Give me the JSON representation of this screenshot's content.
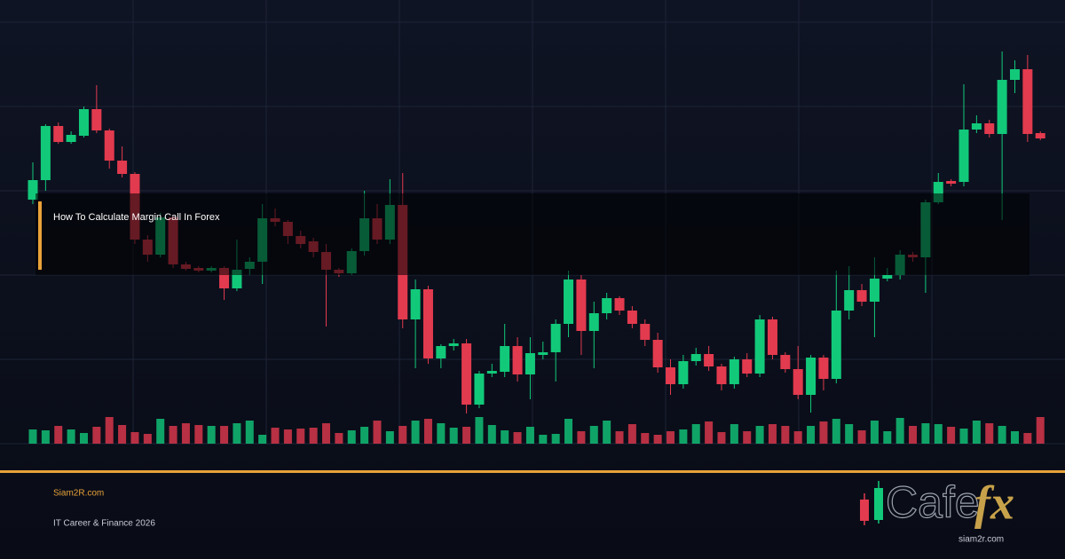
{
  "chart_data": {
    "type": "candlestick",
    "title": "How To Calculate Margin Call In Forex",
    "up_color": "#12c97a",
    "down_color": "#e23a4e",
    "ylim": [
      0,
      480
    ],
    "open": [
      275,
      297,
      358,
      340,
      347,
      377,
      353,
      319,
      304,
      230,
      213,
      255,
      202,
      198,
      195,
      198,
      175,
      197,
      205,
      254,
      250,
      234,
      228,
      216,
      196,
      192,
      217,
      254,
      230,
      269,
      140,
      174,
      96,
      110,
      113,
      44,
      79,
      81,
      110,
      78,
      100,
      103,
      135,
      185,
      127,
      147,
      164,
      150,
      135,
      117,
      86,
      67,
      93,
      101,
      87,
      67,
      95,
      79,
      140,
      100,
      84,
      55,
      97,
      73,
      150,
      173,
      160,
      186,
      190,
      213,
      210,
      272,
      296,
      295,
      354,
      361,
      349,
      410,
      422,
      350
    ],
    "high": [
      317,
      360,
      362,
      352,
      380,
      404,
      355,
      335,
      306,
      235,
      260,
      258,
      205,
      200,
      200,
      200,
      230,
      210,
      270,
      265,
      252,
      240,
      232,
      225,
      198,
      220,
      285,
      270,
      298,
      305,
      185,
      178,
      112,
      118,
      118,
      82,
      90,
      135,
      120,
      120,
      115,
      140,
      195,
      190,
      160,
      170,
      166,
      155,
      140,
      125,
      95,
      100,
      108,
      110,
      90,
      98,
      102,
      145,
      143,
      103,
      110,
      100,
      100,
      195,
      200,
      180,
      210,
      198,
      218,
      216,
      275,
      305,
      298,
      405,
      370,
      365,
      442,
      432,
      438,
      352
    ],
    "low": [
      270,
      285,
      338,
      338,
      345,
      350,
      310,
      300,
      225,
      205,
      210,
      198,
      195,
      193,
      193,
      162,
      172,
      190,
      180,
      245,
      225,
      220,
      210,
      132,
      188,
      190,
      212,
      225,
      225,
      130,
      85,
      90,
      85,
      105,
      34,
      40,
      75,
      75,
      70,
      50,
      95,
      70,
      120,
      100,
      85,
      140,
      145,
      130,
      110,
      80,
      55,
      62,
      88,
      82,
      60,
      62,
      75,
      75,
      95,
      80,
      50,
      35,
      60,
      68,
      140,
      155,
      120,
      183,
      185,
      205,
      170,
      270,
      290,
      290,
      350,
      345,
      252,
      395,
      340,
      342
    ],
    "close": [
      297,
      358,
      340,
      348,
      377,
      353,
      319,
      304,
      230,
      213,
      255,
      202,
      197,
      195,
      198,
      175,
      196,
      205,
      254,
      250,
      234,
      225,
      216,
      196,
      192,
      217,
      254,
      230,
      269,
      140,
      174,
      96,
      110,
      113,
      44,
      79,
      82,
      110,
      78,
      102,
      103,
      135,
      185,
      127,
      147,
      164,
      150,
      135,
      117,
      86,
      67,
      93,
      101,
      87,
      67,
      95,
      79,
      140,
      100,
      84,
      55,
      97,
      73,
      150,
      173,
      160,
      186,
      190,
      213,
      210,
      272,
      295,
      293,
      354,
      361,
      349,
      410,
      422,
      349,
      344
    ],
    "volume": [
      16,
      15,
      20,
      16,
      12,
      19,
      30,
      21,
      13,
      11,
      28,
      20,
      23,
      21,
      20,
      20,
      23,
      26,
      10,
      18,
      16,
      17,
      18,
      23,
      12,
      15,
      19,
      26,
      14,
      20,
      26,
      28,
      23,
      18,
      19,
      30,
      21,
      15,
      13,
      19,
      10,
      11,
      28,
      14,
      20,
      26,
      14,
      22,
      12,
      10,
      14,
      16,
      22,
      25,
      13,
      22,
      14,
      20,
      22,
      20,
      14,
      20,
      25,
      28,
      22,
      15,
      26,
      14,
      29,
      20,
      23,
      22,
      19,
      17,
      26,
      23,
      20,
      14,
      12,
      30
    ]
  },
  "footer": {
    "site": "Siam2R.com",
    "tagline": "IT Career & Finance 2026"
  },
  "logo": {
    "word": "Cafe",
    "accent": "fx",
    "url": "siam2r.com"
  }
}
